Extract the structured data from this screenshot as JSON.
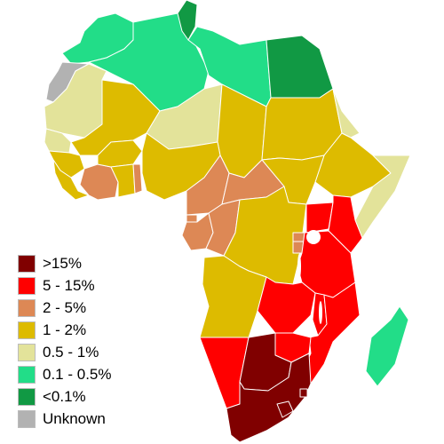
{
  "legend": {
    "items": [
      {
        "label": ">15%",
        "color": "#800000"
      },
      {
        "label": "5 - 15%",
        "color": "#ff0000"
      },
      {
        "label": "2 - 5%",
        "color": "#dd8855"
      },
      {
        "label": "1 - 2%",
        "color": "#ddbb00"
      },
      {
        "label": "0.5 - 1%",
        "color": "#e3e39a"
      },
      {
        "label": "0.1 - 0.5%",
        "color": "#22dd88"
      },
      {
        "label": "<0.1%",
        "color": "#119944"
      },
      {
        "label": "Unknown",
        "color": "#b2b2b2"
      }
    ]
  },
  "regions": [
    {
      "name": "Morocco",
      "category": "0.1 - 0.5%"
    },
    {
      "name": "Western Sahara",
      "category": "Unknown"
    },
    {
      "name": "Algeria",
      "category": "0.1 - 0.5%"
    },
    {
      "name": "Tunisia",
      "category": "<0.1%"
    },
    {
      "name": "Libya",
      "category": "0.1 - 0.5%"
    },
    {
      "name": "Egypt",
      "category": "<0.1%"
    },
    {
      "name": "Mauritania",
      "category": "0.5 - 1%"
    },
    {
      "name": "Mali",
      "category": "1 - 2%"
    },
    {
      "name": "Niger",
      "category": "0.5 - 1%"
    },
    {
      "name": "Chad",
      "category": "1 - 2%"
    },
    {
      "name": "Sudan",
      "category": "1 - 2%"
    },
    {
      "name": "Eritrea",
      "category": "0.5 - 1%"
    },
    {
      "name": "Ethiopia",
      "category": "1 - 2%"
    },
    {
      "name": "Somalia",
      "category": "0.5 - 1%"
    },
    {
      "name": "Senegal",
      "category": "0.5 - 1%"
    },
    {
      "name": "Guinea",
      "category": "1 - 2%"
    },
    {
      "name": "Sierra Leone",
      "category": "1 - 2%"
    },
    {
      "name": "Cote d'Ivoire",
      "category": "2 - 5%"
    },
    {
      "name": "Burkina Faso",
      "category": "1 - 2%"
    },
    {
      "name": "Ghana",
      "category": "1 - 2%"
    },
    {
      "name": "Togo",
      "category": "2 - 5%"
    },
    {
      "name": "Nigeria",
      "category": "1 - 2%"
    },
    {
      "name": "Cameroon",
      "category": "2 - 5%"
    },
    {
      "name": "Central African Republic",
      "category": "2 - 5%"
    },
    {
      "name": "South Sudan",
      "category": "1 - 2%"
    },
    {
      "name": "Equatorial Guinea",
      "category": "2 - 5%"
    },
    {
      "name": "Gabon",
      "category": "2 - 5%"
    },
    {
      "name": "Republic of the Congo",
      "category": "2 - 5%"
    },
    {
      "name": "Democratic Republic of the Congo",
      "category": "1 - 2%"
    },
    {
      "name": "Uganda",
      "category": "5 - 15%"
    },
    {
      "name": "Kenya",
      "category": "5 - 15%"
    },
    {
      "name": "Rwanda",
      "category": "2 - 5%"
    },
    {
      "name": "Burundi",
      "category": "2 - 5%"
    },
    {
      "name": "Tanzania",
      "category": "5 - 15%"
    },
    {
      "name": "Angola",
      "category": "1 - 2%"
    },
    {
      "name": "Zambia",
      "category": "5 - 15%"
    },
    {
      "name": "Malawi",
      "category": "5 - 15%"
    },
    {
      "name": "Mozambique",
      "category": "5 - 15%"
    },
    {
      "name": "Zimbabwe",
      "category": "5 - 15%"
    },
    {
      "name": "Namibia",
      "category": "5 - 15%"
    },
    {
      "name": "Botswana",
      "category": ">15%"
    },
    {
      "name": "South Africa",
      "category": ">15%"
    },
    {
      "name": "Lesotho",
      "category": ">15%"
    },
    {
      "name": "Eswatini",
      "category": ">15%"
    },
    {
      "name": "Madagascar",
      "category": "0.1 - 0.5%"
    }
  ]
}
